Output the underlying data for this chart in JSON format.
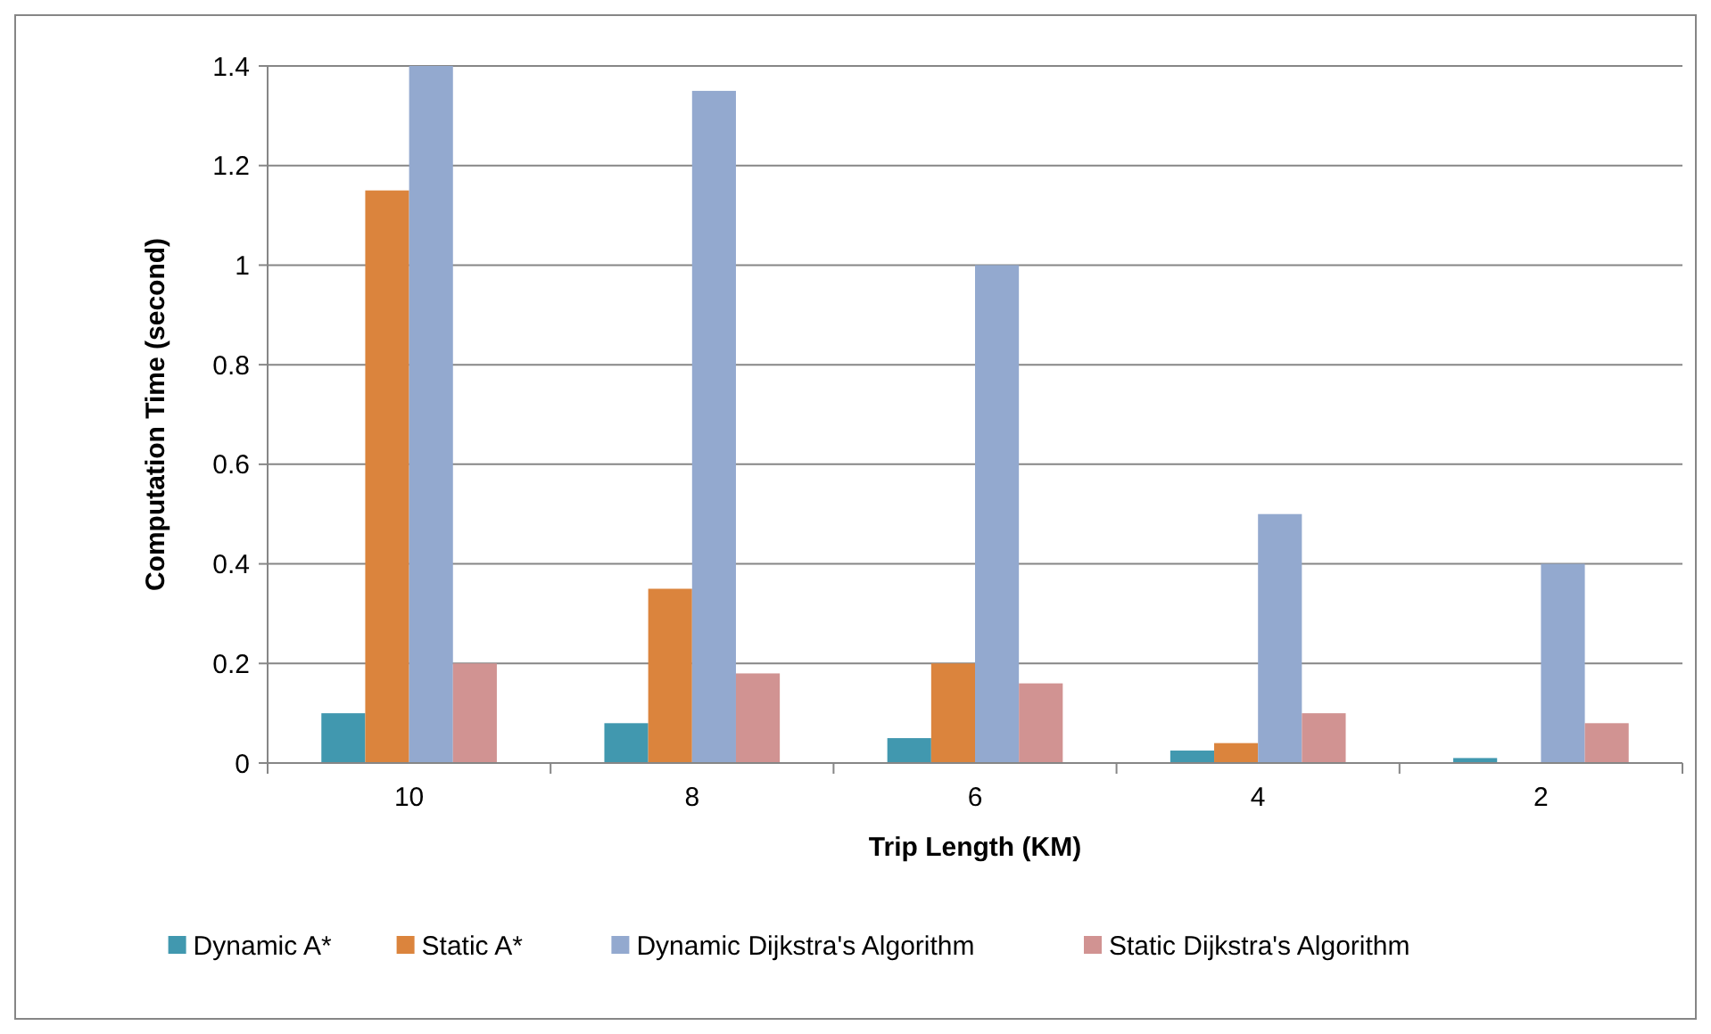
{
  "chart_data": {
    "type": "bar",
    "xlabel": "Trip Length (KM)",
    "ylabel": "Computation Time (second)",
    "categories": [
      "10",
      "8",
      "6",
      "4",
      "2"
    ],
    "series": [
      {
        "name": "Dynamic A*",
        "color": "#4198af",
        "values": [
          0.1,
          0.08,
          0.05,
          0.025,
          0.01
        ]
      },
      {
        "name": "Static A*",
        "color": "#db843d",
        "values": [
          1.15,
          0.35,
          0.2,
          0.04,
          0
        ]
      },
      {
        "name": "Dynamic Dijkstra's Algorithm",
        "color": "#93a9cf",
        "values": [
          1.4,
          1.35,
          1.0,
          0.5,
          0.4
        ]
      },
      {
        "name": "Static Dijkstra's Algorithm",
        "color": "#d19392",
        "values": [
          0.2,
          0.18,
          0.16,
          0.1,
          0.08
        ]
      }
    ],
    "ylim": [
      0,
      1.4
    ],
    "yticks": [
      0,
      0.2,
      0.4,
      0.6,
      0.8,
      1,
      1.2,
      1.4
    ],
    "grid": "y",
    "legend": "bottom"
  }
}
